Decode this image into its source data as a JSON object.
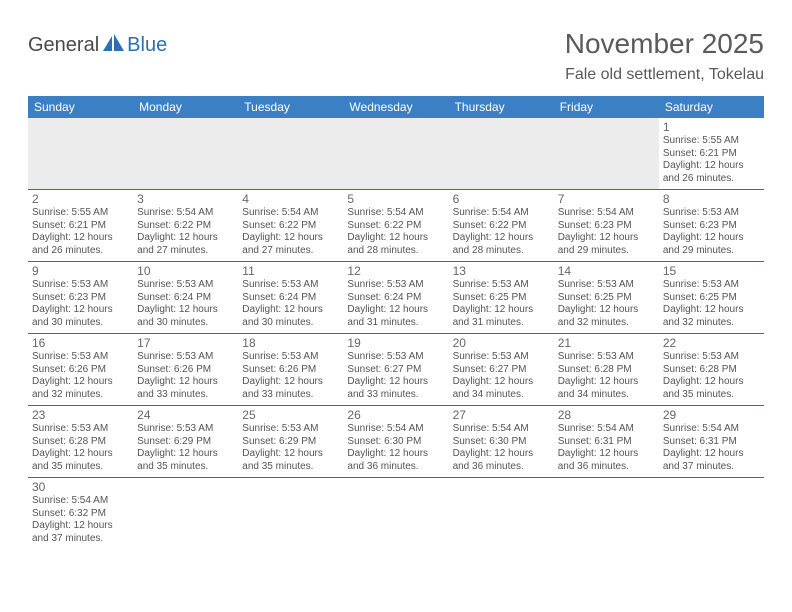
{
  "logo": {
    "text1": "General",
    "text2": "Blue"
  },
  "title": "November 2025",
  "location": "Fale old settlement, Tokelau",
  "colors": {
    "header_bg": "#3b7fc4",
    "header_text": "#ffffff",
    "border": "#2f6fb0",
    "body_text": "#555555",
    "empty_bg": "#ececec",
    "title_text": "#5a5a5a",
    "logo_gray": "#4a4a4a",
    "logo_blue": "#2f6fb0"
  },
  "weekdays": [
    "Sunday",
    "Monday",
    "Tuesday",
    "Wednesday",
    "Thursday",
    "Friday",
    "Saturday"
  ],
  "weeks": [
    [
      null,
      null,
      null,
      null,
      null,
      null,
      {
        "n": "1",
        "sr": "Sunrise: 5:55 AM",
        "ss": "Sunset: 6:21 PM",
        "d1": "Daylight: 12 hours",
        "d2": "and 26 minutes."
      }
    ],
    [
      {
        "n": "2",
        "sr": "Sunrise: 5:55 AM",
        "ss": "Sunset: 6:21 PM",
        "d1": "Daylight: 12 hours",
        "d2": "and 26 minutes."
      },
      {
        "n": "3",
        "sr": "Sunrise: 5:54 AM",
        "ss": "Sunset: 6:22 PM",
        "d1": "Daylight: 12 hours",
        "d2": "and 27 minutes."
      },
      {
        "n": "4",
        "sr": "Sunrise: 5:54 AM",
        "ss": "Sunset: 6:22 PM",
        "d1": "Daylight: 12 hours",
        "d2": "and 27 minutes."
      },
      {
        "n": "5",
        "sr": "Sunrise: 5:54 AM",
        "ss": "Sunset: 6:22 PM",
        "d1": "Daylight: 12 hours",
        "d2": "and 28 minutes."
      },
      {
        "n": "6",
        "sr": "Sunrise: 5:54 AM",
        "ss": "Sunset: 6:22 PM",
        "d1": "Daylight: 12 hours",
        "d2": "and 28 minutes."
      },
      {
        "n": "7",
        "sr": "Sunrise: 5:54 AM",
        "ss": "Sunset: 6:23 PM",
        "d1": "Daylight: 12 hours",
        "d2": "and 29 minutes."
      },
      {
        "n": "8",
        "sr": "Sunrise: 5:53 AM",
        "ss": "Sunset: 6:23 PM",
        "d1": "Daylight: 12 hours",
        "d2": "and 29 minutes."
      }
    ],
    [
      {
        "n": "9",
        "sr": "Sunrise: 5:53 AM",
        "ss": "Sunset: 6:23 PM",
        "d1": "Daylight: 12 hours",
        "d2": "and 30 minutes."
      },
      {
        "n": "10",
        "sr": "Sunrise: 5:53 AM",
        "ss": "Sunset: 6:24 PM",
        "d1": "Daylight: 12 hours",
        "d2": "and 30 minutes."
      },
      {
        "n": "11",
        "sr": "Sunrise: 5:53 AM",
        "ss": "Sunset: 6:24 PM",
        "d1": "Daylight: 12 hours",
        "d2": "and 30 minutes."
      },
      {
        "n": "12",
        "sr": "Sunrise: 5:53 AM",
        "ss": "Sunset: 6:24 PM",
        "d1": "Daylight: 12 hours",
        "d2": "and 31 minutes."
      },
      {
        "n": "13",
        "sr": "Sunrise: 5:53 AM",
        "ss": "Sunset: 6:25 PM",
        "d1": "Daylight: 12 hours",
        "d2": "and 31 minutes."
      },
      {
        "n": "14",
        "sr": "Sunrise: 5:53 AM",
        "ss": "Sunset: 6:25 PM",
        "d1": "Daylight: 12 hours",
        "d2": "and 32 minutes."
      },
      {
        "n": "15",
        "sr": "Sunrise: 5:53 AM",
        "ss": "Sunset: 6:25 PM",
        "d1": "Daylight: 12 hours",
        "d2": "and 32 minutes."
      }
    ],
    [
      {
        "n": "16",
        "sr": "Sunrise: 5:53 AM",
        "ss": "Sunset: 6:26 PM",
        "d1": "Daylight: 12 hours",
        "d2": "and 32 minutes."
      },
      {
        "n": "17",
        "sr": "Sunrise: 5:53 AM",
        "ss": "Sunset: 6:26 PM",
        "d1": "Daylight: 12 hours",
        "d2": "and 33 minutes."
      },
      {
        "n": "18",
        "sr": "Sunrise: 5:53 AM",
        "ss": "Sunset: 6:26 PM",
        "d1": "Daylight: 12 hours",
        "d2": "and 33 minutes."
      },
      {
        "n": "19",
        "sr": "Sunrise: 5:53 AM",
        "ss": "Sunset: 6:27 PM",
        "d1": "Daylight: 12 hours",
        "d2": "and 33 minutes."
      },
      {
        "n": "20",
        "sr": "Sunrise: 5:53 AM",
        "ss": "Sunset: 6:27 PM",
        "d1": "Daylight: 12 hours",
        "d2": "and 34 minutes."
      },
      {
        "n": "21",
        "sr": "Sunrise: 5:53 AM",
        "ss": "Sunset: 6:28 PM",
        "d1": "Daylight: 12 hours",
        "d2": "and 34 minutes."
      },
      {
        "n": "22",
        "sr": "Sunrise: 5:53 AM",
        "ss": "Sunset: 6:28 PM",
        "d1": "Daylight: 12 hours",
        "d2": "and 35 minutes."
      }
    ],
    [
      {
        "n": "23",
        "sr": "Sunrise: 5:53 AM",
        "ss": "Sunset: 6:28 PM",
        "d1": "Daylight: 12 hours",
        "d2": "and 35 minutes."
      },
      {
        "n": "24",
        "sr": "Sunrise: 5:53 AM",
        "ss": "Sunset: 6:29 PM",
        "d1": "Daylight: 12 hours",
        "d2": "and 35 minutes."
      },
      {
        "n": "25",
        "sr": "Sunrise: 5:53 AM",
        "ss": "Sunset: 6:29 PM",
        "d1": "Daylight: 12 hours",
        "d2": "and 35 minutes."
      },
      {
        "n": "26",
        "sr": "Sunrise: 5:54 AM",
        "ss": "Sunset: 6:30 PM",
        "d1": "Daylight: 12 hours",
        "d2": "and 36 minutes."
      },
      {
        "n": "27",
        "sr": "Sunrise: 5:54 AM",
        "ss": "Sunset: 6:30 PM",
        "d1": "Daylight: 12 hours",
        "d2": "and 36 minutes."
      },
      {
        "n": "28",
        "sr": "Sunrise: 5:54 AM",
        "ss": "Sunset: 6:31 PM",
        "d1": "Daylight: 12 hours",
        "d2": "and 36 minutes."
      },
      {
        "n": "29",
        "sr": "Sunrise: 5:54 AM",
        "ss": "Sunset: 6:31 PM",
        "d1": "Daylight: 12 hours",
        "d2": "and 37 minutes."
      }
    ],
    [
      {
        "n": "30",
        "sr": "Sunrise: 5:54 AM",
        "ss": "Sunset: 6:32 PM",
        "d1": "Daylight: 12 hours",
        "d2": "and 37 minutes."
      },
      null,
      null,
      null,
      null,
      null,
      null
    ]
  ]
}
